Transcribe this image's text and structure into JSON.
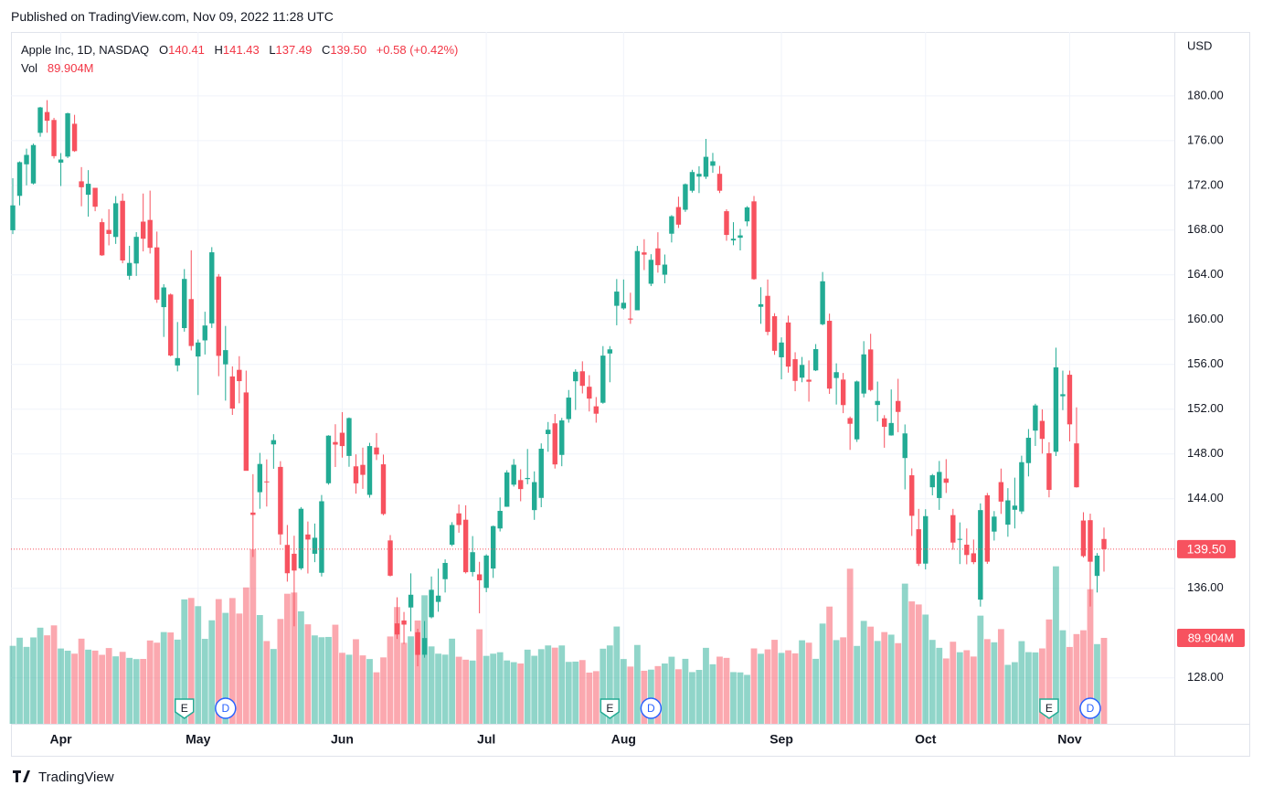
{
  "header": {
    "published": "Published on TradingView.com, Nov 09, 2022 11:28 UTC"
  },
  "footer": {
    "brand": "TradingView"
  },
  "chart_data": {
    "type": "candlestick",
    "legend": {
      "symbol": "Apple Inc, 1D, NASDAQ",
      "ohlc": [
        [
          "O",
          "140.41"
        ],
        [
          "H",
          "141.43"
        ],
        [
          "L",
          "137.49"
        ],
        [
          "C",
          "139.50"
        ]
      ],
      "change": "+0.58 (+0.42%)",
      "vol_key": "Vol",
      "vol": "89.904M"
    },
    "currency": "USD",
    "last_price_label": "139.50",
    "last_volume_label": "89.904M",
    "up_color": "#22ab94",
    "down_color": "#f7525f",
    "grid": true,
    "ylim": [
      123.9,
      185.7
    ],
    "volume_ylim": [
      0,
      724
    ],
    "yticks": [
      {
        "value": 128,
        "label": "128.00"
      },
      {
        "value": 136,
        "label": "136.00"
      },
      {
        "value": 144,
        "label": "144.00"
      },
      {
        "value": 148,
        "label": "148.00"
      },
      {
        "value": 152,
        "label": "152.00"
      },
      {
        "value": 156,
        "label": "156.00"
      },
      {
        "value": 160,
        "label": "160.00"
      },
      {
        "value": 164,
        "label": "164.00"
      },
      {
        "value": 168,
        "label": "168.00"
      },
      {
        "value": 172,
        "label": "172.00"
      },
      {
        "value": 176,
        "label": "176.00"
      },
      {
        "value": 180,
        "label": "180.00"
      }
    ],
    "categories": [
      null,
      null,
      null,
      null,
      null,
      null,
      null,
      "Apr",
      null,
      null,
      null,
      null,
      null,
      null,
      null,
      null,
      null,
      null,
      null,
      null,
      null,
      null,
      null,
      null,
      null,
      null,
      null,
      "May",
      null,
      null,
      null,
      null,
      null,
      null,
      null,
      null,
      null,
      null,
      null,
      null,
      null,
      null,
      null,
      null,
      null,
      null,
      null,
      null,
      "Jun",
      null,
      null,
      null,
      null,
      null,
      null,
      null,
      null,
      null,
      null,
      null,
      null,
      null,
      null,
      null,
      null,
      null,
      null,
      null,
      null,
      "Jul",
      null,
      null,
      null,
      null,
      null,
      null,
      null,
      null,
      null,
      null,
      null,
      null,
      null,
      null,
      null,
      null,
      null,
      null,
      null,
      "Aug",
      null,
      null,
      null,
      null,
      null,
      null,
      null,
      null,
      null,
      null,
      null,
      null,
      null,
      null,
      null,
      null,
      null,
      null,
      null,
      null,
      null,
      null,
      "Sep",
      null,
      null,
      null,
      null,
      null,
      null,
      null,
      null,
      null,
      null,
      null,
      null,
      null,
      null,
      null,
      null,
      null,
      null,
      null,
      null,
      "Oct",
      null,
      null,
      null,
      null,
      null,
      null,
      null,
      null,
      null,
      null,
      null,
      null,
      null,
      null,
      null,
      null,
      null,
      null,
      null,
      null,
      "Nov",
      null,
      null,
      null,
      null,
      null
    ],
    "events": [
      {
        "label": "E",
        "index": 25
      },
      {
        "label": "D",
        "index": 31
      },
      {
        "label": "E",
        "index": 87
      },
      {
        "label": "D",
        "index": 93
      },
      {
        "label": "E",
        "index": 151
      },
      {
        "label": "D",
        "index": 157
      }
    ],
    "candles": {
      "open": [
        167.99,
        171.06,
        173.88,
        172.17,
        176.69,
        178.55,
        177.84,
        174.03,
        174.57,
        177.5,
        172.36,
        171.16,
        171.78,
        168.71,
        168.02,
        167.39,
        170.62,
        163.92,
        165.02,
        168.76,
        168.91,
        166.46,
        161.12,
        162.25,
        155.91,
        159.25,
        161.84,
        156.71,
        158.15,
        159.67,
        163.85,
        156.01,
        154.93,
        155.52,
        153.5,
        142.77,
        144.59,
        145.55,
        148.86,
        146.85,
        139.88,
        139.09,
        137.79,
        140.81,
        139.09,
        137.39,
        145.39,
        149.07,
        149.9,
        147.83,
        146.9,
        147.03,
        144.35,
        148.58,
        147.08,
        140.28,
        132.87,
        133.13,
        134.29,
        132.08,
        130.07,
        133.42,
        134.79,
        136.82,
        139.9,
        142.7,
        142.13,
        137.46,
        137.25,
        136.04,
        137.77,
        141.35,
        143.29,
        145.26,
        145.67,
        145.76,
        142.99,
        144.08,
        149.78,
        150.74,
        147.92,
        151.12,
        154.5,
        155.39,
        154.01,
        152.26,
        152.58,
        156.98,
        161.24,
        161.01,
        160.1,
        160.84,
        166.01,
        163.21,
        166.37,
        164.02,
        167.68,
        170.06,
        169.82,
        171.52,
        172.78,
        172.77,
        173.75,
        173.03,
        169.69,
        167.08,
        167.32,
        168.78,
        170.57,
        161.15,
        162.13,
        160.31,
        156.64,
        159.75,
        156.47,
        154.82,
        154.64,
        155.47,
        159.59,
        159.9,
        154.79,
        154.65,
        151.21,
        149.31,
        153.4,
        157.34,
        152.38,
        151.19,
        149.66,
        152.74,
        147.64,
        146.1,
        141.28,
        138.21,
        145.03,
        144.07,
        145.81,
        142.54,
        140.42,
        139.9,
        139.13,
        134.99,
        144.31,
        141.07,
        145.49,
        141.69,
        143.02,
        142.87,
        147.19,
        150.09,
        150.96,
        148.07,
        148.2,
        153.16,
        155.08,
        148.95,
        142.06,
        142.09,
        137.11,
        140.41
      ],
      "high": [
        172.64,
        174.14,
        175.28,
        175.73,
        179.01,
        179.61,
        178.03,
        174.88,
        178.49,
        178.3,
        173.63,
        173.36,
        171.78,
        169.03,
        169.87,
        171.04,
        171.27,
        166.6,
        167.82,
        171.27,
        171.53,
        167.87,
        163.17,
        162.34,
        159.79,
        164.52,
        166.2,
        158.23,
        160.71,
        166.48,
        164.08,
        159.44,
        155.83,
        156.74,
        155.45,
        146.2,
        148.1,
        147.52,
        149.77,
        147.36,
        141.66,
        140.7,
        143.26,
        141.97,
        141.79,
        144.34,
        149.68,
        150.66,
        151.74,
        151.27,
        147.97,
        148.57,
        149.0,
        149.87,
        147.95,
        140.76,
        135.2,
        133.89,
        137.34,
        132.39,
        133.08,
        137.06,
        137.76,
        138.59,
        141.91,
        143.49,
        143.42,
        140.67,
        138.37,
        139.04,
        141.61,
        144.12,
        146.55,
        147.55,
        146.64,
        148.45,
        146.45,
        148.95,
        150.86,
        151.57,
        151.23,
        153.72,
        155.57,
        156.28,
        155.04,
        153.09,
        157.64,
        157.64,
        163.63,
        163.59,
        162.41,
        166.59,
        167.19,
        165.85,
        167.81,
        165.82,
        169.34,
        170.99,
        172.17,
        173.39,
        173.71,
        176.15,
        174.9,
        173.74,
        169.86,
        168.71,
        168.11,
        170.14,
        171.05,
        162.9,
        163.59,
        160.58,
        158.42,
        160.36,
        157.09,
        156.67,
        156.36,
        157.82,
        164.26,
        160.54,
        156.1,
        155.24,
        151.35,
        154.56,
        158.08,
        158.74,
        154.47,
        151.47,
        153.77,
        154.72,
        150.64,
        146.72,
        143.1,
        143.07,
        146.22,
        147.38,
        147.54,
        143.1,
        141.89,
        141.35,
        140.36,
        143.59,
        144.52,
        142.9,
        146.7,
        144.95,
        145.89,
        147.85,
        150.23,
        152.49,
        151.99,
        149.05,
        157.5,
        155.45,
        155.45,
        152.17,
        142.8,
        142.67,
        139.15,
        141.43
      ],
      "low": [
        167.65,
        170.21,
        172.0,
        172.08,
        176.34,
        176.7,
        174.4,
        171.94,
        174.44,
        174.99,
        170.13,
        169.2,
        169.69,
        165.7,
        166.64,
        166.77,
        165.04,
        163.57,
        163.91,
        166.1,
        165.91,
        161.5,
        158.46,
        156.72,
        155.38,
        158.93,
        157.25,
        153.27,
        156.89,
        159.26,
        154.95,
        152.77,
        151.49,
        152.53,
        146.68,
        138.8,
        143.11,
        143.31,
        146.68,
        139.9,
        136.6,
        132.61,
        137.65,
        137.33,
        138.34,
        137.06,
        145.26,
        146.84,
        147.68,
        146.86,
        144.46,
        144.89,
        144.1,
        147.46,
        142.53,
        137.06,
        131.48,
        131.03,
        132.16,
        129.04,
        129.81,
        133.32,
        133.91,
        135.63,
        139.77,
        140.97,
        137.33,
        137.06,
        133.77,
        135.66,
        136.93,
        141.08,
        143.28,
        145.09,
        143.78,
        145.3,
        142.12,
        143.25,
        148.2,
        146.7,
        146.91,
        150.8,
        151.94,
        153.41,
        151.8,
        150.8,
        152.49,
        154.41,
        159.5,
        160.89,
        159.63,
        160.84,
        164.43,
        163.0,
        164.2,
        163.25,
        166.9,
        168.19,
        169.63,
        171.35,
        171.31,
        172.57,
        173.12,
        171.31,
        167.05,
        166.65,
        166.19,
        168.35,
        163.56,
        159.63,
        158.61,
        156.86,
        154.67,
        155.27,
        153.61,
        154.41,
        152.68,
        155.41,
        159.5,
        153.37,
        152.42,
        151.65,
        148.37,
        149.08,
        153.06,
        153.6,
        150.91,
        148.56,
        149.64,
        149.95,
        144.84,
        140.68,
        138.0,
        137.69,
        144.31,
        143.01,
        144.52,
        139.45,
        138.17,
        138.15,
        138.16,
        134.37,
        138.19,
        140.27,
        142.65,
        140.61,
        141.35,
        142.65,
        146.0,
        148.72,
        148.04,
        144.13,
        147.82,
        151.92,
        149.13,
        145.0,
        138.75,
        134.38,
        135.63,
        137.49
      ],
      "close": [
        170.21,
        174.07,
        174.72,
        175.6,
        178.96,
        177.77,
        174.61,
        174.31,
        178.44,
        175.06,
        171.83,
        172.14,
        170.09,
        165.75,
        167.66,
        170.4,
        165.29,
        165.07,
        167.4,
        167.23,
        166.42,
        161.79,
        162.88,
        156.8,
        156.57,
        163.64,
        157.65,
        157.96,
        159.48,
        166.02,
        156.77,
        157.28,
        152.06,
        154.51,
        146.5,
        142.56,
        147.11,
        145.54,
        149.24,
        140.82,
        137.35,
        137.59,
        143.11,
        140.36,
        140.52,
        143.78,
        149.64,
        148.84,
        148.71,
        151.21,
        145.38,
        146.14,
        148.71,
        147.96,
        142.64,
        137.13,
        131.88,
        132.76,
        135.43,
        130.06,
        131.56,
        135.87,
        135.35,
        138.27,
        141.66,
        141.66,
        137.44,
        139.23,
        136.72,
        138.93,
        141.56,
        142.92,
        146.35,
        147.04,
        144.87,
        145.86,
        145.49,
        148.47,
        150.17,
        147.07,
        151.0,
        153.04,
        155.35,
        154.09,
        152.95,
        151.6,
        156.79,
        157.35,
        162.51,
        161.51,
        160.01,
        166.13,
        165.81,
        165.35,
        164.87,
        164.92,
        169.24,
        168.49,
        172.1,
        173.19,
        173.03,
        174.55,
        174.15,
        171.52,
        167.57,
        167.23,
        167.53,
        170.03,
        163.62,
        161.38,
        158.91,
        157.22,
        157.96,
        155.81,
        154.53,
        155.96,
        154.46,
        157.37,
        163.43,
        153.84,
        155.31,
        152.37,
        150.7,
        154.48,
        156.9,
        153.72,
        152.74,
        150.43,
        150.77,
        151.76,
        149.84,
        142.48,
        138.2,
        142.45,
        146.1,
        146.4,
        145.43,
        140.09,
        140.42,
        138.98,
        138.34,
        142.99,
        138.38,
        142.41,
        143.75,
        143.86,
        143.39,
        147.27,
        149.45,
        152.34,
        149.35,
        144.8,
        155.74,
        153.34,
        150.65,
        145.03,
        138.88,
        138.38,
        138.92,
        139.5
      ],
      "volume": [
        81.6,
        90.1,
        80.5,
        90.4,
        100.6,
        92.6,
        103.0,
        78.8,
        76.5,
        73.4,
        89.1,
        77.6,
        76.6,
        72.2,
        79.3,
        70.6,
        75.3,
        69.0,
        67.7,
        67.9,
        87.2,
        84.9,
        96.0,
        95.6,
        88.1,
        130.2,
        131.7,
        123.1,
        88.9,
        108.3,
        130.5,
        116.1,
        131.6,
        115.4,
        142.7,
        182.6,
        113.8,
        86.6,
        78.3,
        109.7,
        136.1,
        137.4,
        117.7,
        104.1,
        92.5,
        90.6,
        90.9,
        103.7,
        74.3,
        72.3,
        88.5,
        71.6,
        67.8,
        53.9,
        69.5,
        91.4,
        122.2,
        84.8,
        91.5,
        108.1,
        134.5,
        81.0,
        73.4,
        72.4,
        89.1,
        70.2,
        67.1,
        66.2,
        98.9,
        71.1,
        73.4,
        74.9,
        66.3,
        64.5,
        63.1,
        77.6,
        71.2,
        78.1,
        82.0,
        79.7,
        82.0,
        64.8,
        65.1,
        66.7,
        53.6,
        55.1,
        78.6,
        82.0,
        101.8,
        67.8,
        59.9,
        82.5,
        55.5,
        56.7,
        60.4,
        63.1,
        70.2,
        57.1,
        68.0,
        54.1,
        56.4,
        79.5,
        62.3,
        70.3,
        69.0,
        54.1,
        53.8,
        51.2,
        78.9,
        73.3,
        77.9,
        87.9,
        74.2,
        76.9,
        73.7,
        87.4,
        84.9,
        68.0,
        104.9,
        122.7,
        87.6,
        90.5,
        162.3,
        81.5,
        107.7,
        101.7,
        86.7,
        96.0,
        93.3,
        84.4,
        146.7,
        128.1,
        124.9,
        114.3,
        87.8,
        79.5,
        68.4,
        85.9,
        74.9,
        77.0,
        70.4,
        113.2,
        88.6,
        85.3,
        99.1,
        61.7,
        64.5,
        86.5,
        75.0,
        74.7,
        78.9,
        109.2,
        164.8,
        97.9,
        80.4,
        93.9,
        97.9,
        140.8,
        83.4,
        89.904
      ]
    }
  }
}
